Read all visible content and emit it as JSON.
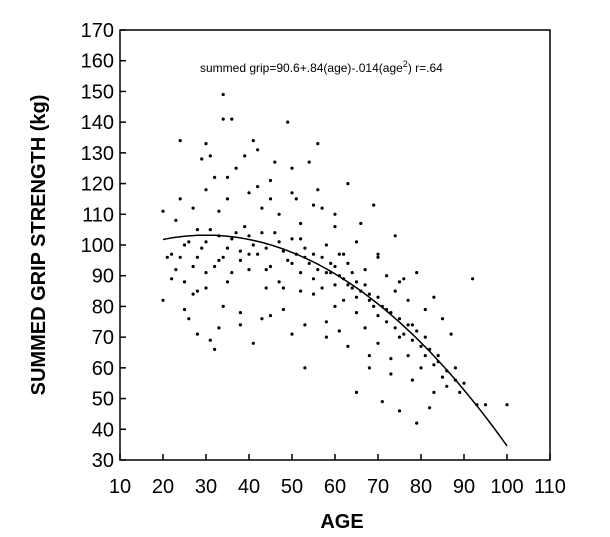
{
  "chart_data": {
    "type": "scatter",
    "title": "",
    "xlabel": "AGE",
    "ylabel": "SUMMED GRIP STRENGTH (kg)",
    "xlim": [
      10,
      110
    ],
    "ylim": [
      30,
      170
    ],
    "xticks": [
      10,
      20,
      30,
      40,
      50,
      60,
      70,
      80,
      90,
      100,
      110
    ],
    "yticks": [
      30,
      40,
      50,
      60,
      70,
      80,
      90,
      100,
      110,
      120,
      130,
      140,
      150,
      160,
      170
    ],
    "grid": false,
    "annotation": {
      "prefix": "summed grip=90.6+.84(age)-.014(age",
      "superscript": "2",
      "suffix": ") r=.64"
    },
    "fit": {
      "intercept": 90.6,
      "linear": 0.84,
      "quadratic": -0.014,
      "x_range": [
        20,
        100
      ]
    },
    "point_color": "#000000",
    "series": [
      {
        "values": [
          [
            20,
            82
          ],
          [
            20,
            111
          ],
          [
            22,
            97
          ],
          [
            23,
            108
          ],
          [
            24,
            134
          ],
          [
            24,
            115
          ],
          [
            25,
            79
          ],
          [
            25,
            88
          ],
          [
            26,
            76
          ],
          [
            27,
            112
          ],
          [
            28,
            105
          ],
          [
            28,
            85
          ],
          [
            29,
            128
          ],
          [
            30,
            133
          ],
          [
            30,
            91
          ],
          [
            31,
            129
          ],
          [
            31,
            69
          ],
          [
            32,
            122
          ],
          [
            32,
            66
          ],
          [
            33,
            95
          ],
          [
            34,
            149
          ],
          [
            34,
            141
          ],
          [
            34,
            80
          ],
          [
            35,
            115
          ],
          [
            35,
            88
          ],
          [
            36,
            141
          ],
          [
            37,
            125
          ],
          [
            38,
            95
          ],
          [
            38,
            74
          ],
          [
            39,
            129
          ],
          [
            40,
            103
          ],
          [
            40,
            97
          ],
          [
            41,
            134
          ],
          [
            41,
            68
          ],
          [
            42,
            131
          ],
          [
            42,
            119
          ],
          [
            43,
            104
          ],
          [
            44,
            92
          ],
          [
            45,
            115
          ],
          [
            45,
            77
          ],
          [
            46,
            127
          ],
          [
            47,
            110
          ],
          [
            48,
            86
          ],
          [
            49,
            140
          ],
          [
            50,
            125
          ],
          [
            50,
            71
          ],
          [
            51,
            115
          ],
          [
            52,
            102
          ],
          [
            53,
            96
          ],
          [
            53,
            60
          ],
          [
            54,
            127
          ],
          [
            55,
            84
          ],
          [
            56,
            133
          ],
          [
            56,
            118
          ],
          [
            57,
            112
          ],
          [
            58,
            100
          ],
          [
            58,
            75
          ],
          [
            59,
            91
          ],
          [
            60,
            110
          ],
          [
            60,
            80
          ],
          [
            61,
            72
          ],
          [
            62,
            97
          ],
          [
            63,
            94
          ],
          [
            63,
            120
          ],
          [
            64,
            86
          ],
          [
            65,
            78
          ],
          [
            65,
            52
          ],
          [
            66,
            107
          ],
          [
            67,
            92
          ],
          [
            68,
            84
          ],
          [
            68,
            64
          ],
          [
            69,
            113
          ],
          [
            70,
            68
          ],
          [
            70,
            96
          ],
          [
            71,
            49
          ],
          [
            72,
            79
          ],
          [
            73,
            58
          ],
          [
            74,
            85
          ],
          [
            74,
            103
          ],
          [
            75,
            46
          ],
          [
            75,
            70
          ],
          [
            76,
            89
          ],
          [
            77,
            64
          ],
          [
            78,
            74
          ],
          [
            79,
            42
          ],
          [
            79,
            91
          ],
          [
            80,
            60
          ],
          [
            81,
            70
          ],
          [
            82,
            47
          ],
          [
            83,
            83
          ],
          [
            84,
            64
          ],
          [
            85,
            76
          ],
          [
            86,
            54
          ],
          [
            87,
            71
          ],
          [
            88,
            60
          ],
          [
            90,
            55
          ],
          [
            92,
            89
          ],
          [
            93,
            48
          ],
          [
            95,
            48
          ],
          [
            100,
            48
          ],
          [
            21,
            96
          ],
          [
            22,
            89
          ],
          [
            23,
            92
          ],
          [
            24,
            96
          ],
          [
            25,
            100
          ],
          [
            26,
            101
          ],
          [
            27,
            93
          ],
          [
            27,
            84
          ],
          [
            28,
            96
          ],
          [
            29,
            99
          ],
          [
            30,
            101
          ],
          [
            30,
            86
          ],
          [
            31,
            105
          ],
          [
            32,
            93
          ],
          [
            33,
            103
          ],
          [
            33,
            111
          ],
          [
            34,
            96
          ],
          [
            35,
            99
          ],
          [
            36,
            102
          ],
          [
            37,
            104
          ],
          [
            38,
            98
          ],
          [
            39,
            106
          ],
          [
            40,
            92
          ],
          [
            41,
            100
          ],
          [
            42,
            97
          ],
          [
            43,
            112
          ],
          [
            44,
            99
          ],
          [
            45,
            93
          ],
          [
            46,
            104
          ],
          [
            47,
            101
          ],
          [
            47,
            88
          ],
          [
            48,
            98
          ],
          [
            49,
            95
          ],
          [
            50,
            102
          ],
          [
            50,
            94
          ],
          [
            51,
            97
          ],
          [
            52,
            91
          ],
          [
            52,
            85
          ],
          [
            53,
            99
          ],
          [
            54,
            94
          ],
          [
            55,
            97
          ],
          [
            55,
            89
          ],
          [
            56,
            92
          ],
          [
            57,
            96
          ],
          [
            57,
            86
          ],
          [
            58,
            91
          ],
          [
            59,
            94
          ],
          [
            60,
            93
          ],
          [
            60,
            87
          ],
          [
            61,
            90
          ],
          [
            62,
            89
          ],
          [
            62,
            82
          ],
          [
            63,
            87
          ],
          [
            64,
            91
          ],
          [
            65,
            88
          ],
          [
            65,
            83
          ],
          [
            66,
            85
          ],
          [
            67,
            87
          ],
          [
            68,
            82
          ],
          [
            69,
            80
          ],
          [
            70,
            83
          ],
          [
            70,
            77
          ],
          [
            71,
            80
          ],
          [
            72,
            75
          ],
          [
            73,
            78
          ],
          [
            74,
            73
          ],
          [
            75,
            76
          ],
          [
            76,
            71
          ],
          [
            77,
            74
          ],
          [
            78,
            69
          ],
          [
            79,
            72
          ],
          [
            80,
            67
          ],
          [
            81,
            64
          ],
          [
            82,
            66
          ],
          [
            83,
            61
          ],
          [
            84,
            62
          ],
          [
            85,
            57
          ],
          [
            86,
            59
          ],
          [
            88,
            56
          ],
          [
            89,
            52
          ],
          [
            30,
            118
          ],
          [
            35,
            122
          ],
          [
            40,
            117
          ],
          [
            45,
            121
          ],
          [
            50,
            117
          ],
          [
            55,
            113
          ],
          [
            60,
            106
          ],
          [
            65,
            101
          ],
          [
            70,
            97
          ],
          [
            75,
            88
          ],
          [
            28,
            71
          ],
          [
            33,
            73
          ],
          [
            38,
            78
          ],
          [
            43,
            76
          ],
          [
            48,
            79
          ],
          [
            53,
            74
          ],
          [
            58,
            70
          ],
          [
            63,
            67
          ],
          [
            68,
            60
          ],
          [
            73,
            63
          ],
          [
            78,
            56
          ],
          [
            83,
            52
          ],
          [
            36,
            91
          ],
          [
            44,
            86
          ],
          [
            52,
            107
          ],
          [
            61,
            97
          ],
          [
            67,
            73
          ],
          [
            72,
            90
          ],
          [
            77,
            82
          ],
          [
            81,
            79
          ]
        ]
      }
    ]
  }
}
